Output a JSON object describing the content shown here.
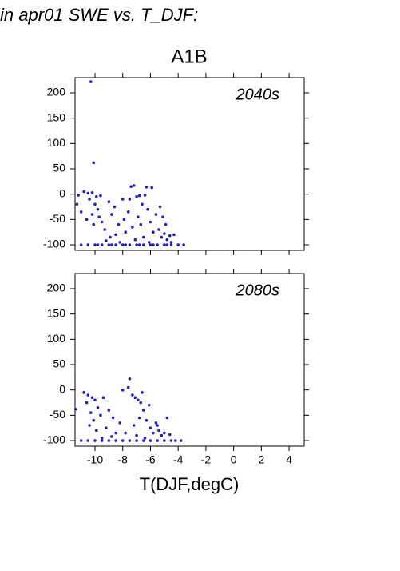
{
  "page_title": "in apr01 SWE vs. T_DJF:",
  "chart_data": [
    {
      "type": "scatter",
      "title": "A1B",
      "annotation": "2040s",
      "color": "#2222bb",
      "xlim": [
        -11.44,
        5.09
      ],
      "ylim": [
        -111,
        230
      ],
      "xticks": [
        -10,
        -8,
        -6,
        -4,
        -2,
        0,
        2,
        4
      ],
      "yticks": [
        -100,
        -50,
        0,
        50,
        100,
        150,
        200
      ],
      "x": [
        -10.3,
        -10.1,
        -11.2,
        -10.8,
        -10.5,
        -10.2,
        -9.9,
        -9.6,
        -10.4,
        -10.0,
        -9.8,
        -10.2,
        -9.7,
        -10.1,
        -9.5,
        -9.3,
        -9.0,
        -8.8,
        -8.6,
        -8.3,
        -8.0,
        -8.5,
        -7.9,
        -7.6,
        -7.4,
        -7.2,
        -7.0,
        -6.8,
        -6.6,
        -6.9,
        -7.3,
        -6.4,
        -6.2,
        -6.0,
        -5.8,
        -5.6,
        -5.4,
        -5.2,
        -5.0,
        -4.8,
        -4.6,
        -4.5,
        -5.9,
        -6.3,
        -5.3,
        -5.1,
        -4.9,
        -6.5,
        -7.1,
        -7.8,
        -8.2,
        -8.9,
        -9.2,
        -10.6,
        -11.0,
        -11.3,
        -4.3,
        -6.7,
        -6.1,
        -7.5,
        -11.0,
        -10.5,
        -10.0,
        -9.5,
        -9.0,
        -8.5,
        -8.0,
        -7.5,
        -7.0,
        -6.5,
        -6.0,
        -5.5,
        -5.0,
        -4.5,
        -4.0,
        -3.6,
        -9.8,
        -8.8,
        -7.8,
        -6.8,
        -5.8,
        -4.8
      ],
      "values": [
        222,
        62,
        -2,
        5,
        2,
        3,
        -5,
        -3,
        -10,
        -20,
        -30,
        -40,
        -45,
        -60,
        -55,
        -70,
        -15,
        -40,
        -25,
        -60,
        -10,
        -80,
        -50,
        -35,
        15,
        17,
        -5,
        -3,
        -20,
        -45,
        -65,
        -2,
        -30,
        -55,
        -75,
        -40,
        -70,
        -85,
        -78,
        -90,
        -82,
        -95,
        13,
        14,
        -25,
        -45,
        -60,
        -85,
        -90,
        -75,
        -95,
        -85,
        -92,
        -50,
        -35,
        -20,
        -80,
        -60,
        -95,
        -10,
        -100,
        -100,
        -100,
        -100,
        -100,
        -100,
        -100,
        -100,
        -100,
        -100,
        -100,
        -100,
        -100,
        -100,
        -100,
        -100,
        -100,
        -100,
        -100,
        -100,
        -100,
        -100
      ]
    },
    {
      "type": "scatter",
      "annotation": "2080s",
      "xlabel": "T(DJF,degC)",
      "color": "#2222bb",
      "xlim": [
        -11.44,
        5.09
      ],
      "ylim": [
        -111,
        230
      ],
      "xticks": [
        -10,
        -8,
        -6,
        -4,
        -2,
        0,
        2,
        4
      ],
      "yticks": [
        -100,
        -50,
        0,
        50,
        100,
        150,
        200
      ],
      "x": [
        -11.4,
        -10.8,
        -10.5,
        -10.2,
        -10.6,
        -10.0,
        -9.8,
        -10.3,
        -9.6,
        -10.1,
        -9.4,
        -9.2,
        -9.9,
        -10.4,
        -9.0,
        -8.7,
        -8.5,
        -8.2,
        -8.0,
        -7.6,
        -7.5,
        -7.3,
        -7.1,
        -6.9,
        -6.7,
        -6.5,
        -6.8,
        -7.2,
        -6.3,
        -6.1,
        -6.0,
        -5.8,
        -5.6,
        -5.4,
        -5.2,
        -5.0,
        -4.8,
        -4.6,
        -7.0,
        -7.8,
        -6.4,
        -8.8,
        -9.5,
        -5.5,
        -6.6,
        -11.0,
        -10.5,
        -10.0,
        -9.5,
        -9.0,
        -8.5,
        -8.0,
        -7.5,
        -7.0,
        -6.5,
        -6.0,
        -5.5,
        -5.0,
        -4.5,
        -4.2,
        -3.8
      ],
      "values": [
        -38,
        -5,
        -10,
        -15,
        -25,
        -20,
        -35,
        -45,
        -50,
        -60,
        -15,
        -75,
        -80,
        -70,
        -40,
        -55,
        -85,
        -65,
        0,
        5,
        22,
        -10,
        -15,
        -20,
        -25,
        -40,
        -55,
        -70,
        -60,
        -30,
        -75,
        -85,
        -65,
        -80,
        -90,
        -85,
        -55,
        -88,
        -90,
        -85,
        -95,
        -92,
        -95,
        -70,
        -5,
        -100,
        -100,
        -100,
        -100,
        -100,
        -100,
        -100,
        -100,
        -100,
        -100,
        -100,
        -100,
        -100,
        -100,
        -100,
        -100
      ]
    }
  ]
}
